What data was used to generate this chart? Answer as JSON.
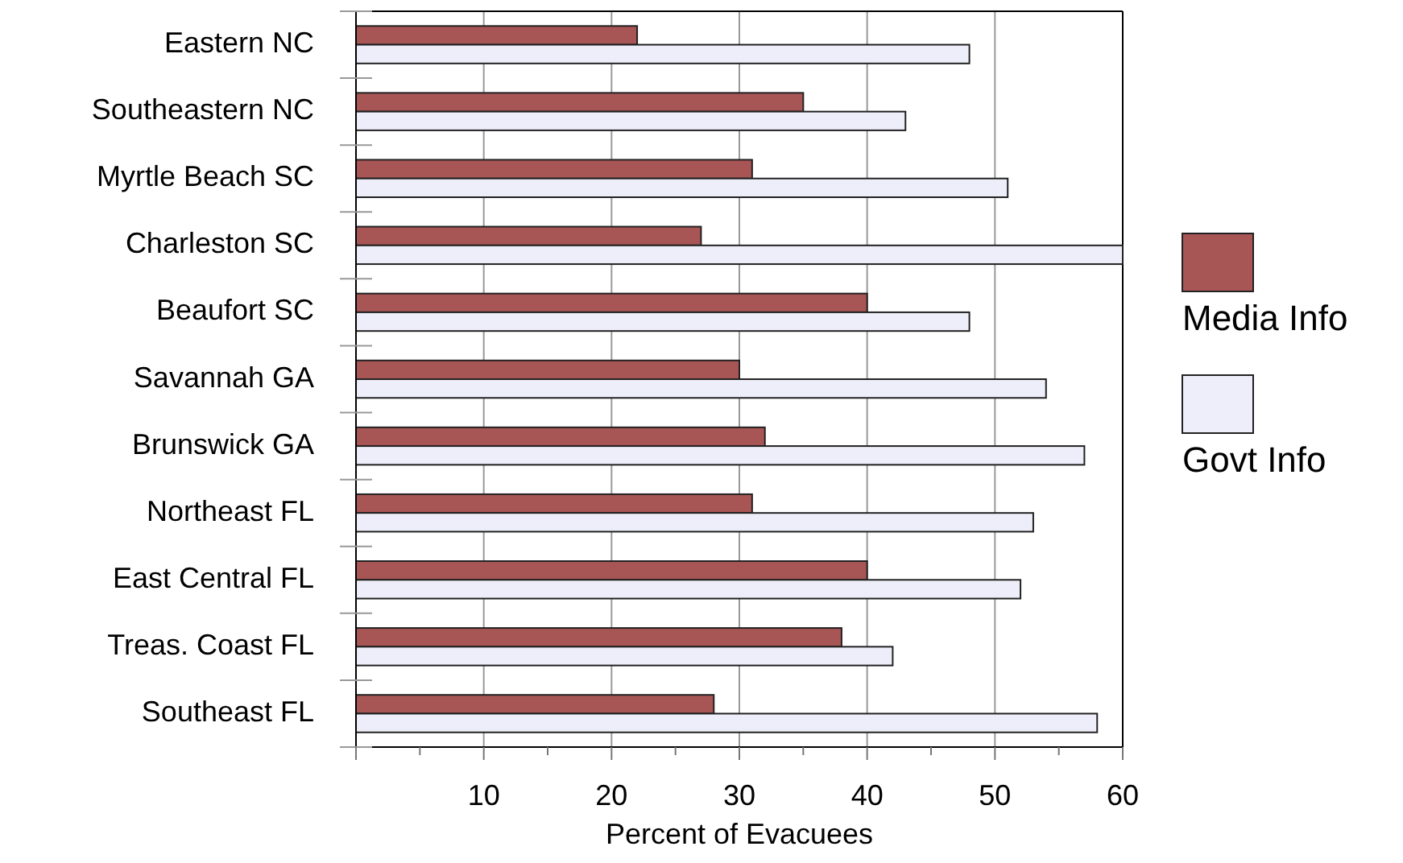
{
  "chart_data": {
    "type": "bar",
    "orientation": "horizontal",
    "xlabel": "Percent of Evacuees",
    "categories": [
      "Eastern NC",
      "Southeastern NC",
      "Myrtle Beach SC",
      "Charleston SC",
      "Beaufort SC",
      "Savannah GA",
      "Brunswick GA",
      "Northeast FL",
      "East Central FL",
      "Treas. Coast FL",
      "Southeast FL"
    ],
    "series": [
      {
        "name": "Media Info",
        "color": "#a85555",
        "values": [
          22,
          35,
          31,
          27,
          40,
          30,
          32,
          31,
          40,
          38,
          28
        ]
      },
      {
        "name": "Govt Info",
        "color": "#eeeefa",
        "values": [
          48,
          43,
          51,
          60,
          48,
          54,
          57,
          53,
          52,
          42,
          58
        ]
      }
    ],
    "xlim": [
      0,
      60
    ],
    "xticks": [
      {
        "value": 0,
        "label": null
      },
      {
        "value": 5,
        "label": null
      },
      10,
      {
        "value": 15,
        "label": null
      },
      20,
      {
        "value": 25,
        "label": null
      },
      30,
      {
        "value": 35,
        "label": null
      },
      40,
      {
        "value": 45,
        "label": null
      },
      50,
      {
        "value": 55,
        "label": null
      },
      60
    ],
    "grid": "x",
    "legend": "right"
  }
}
